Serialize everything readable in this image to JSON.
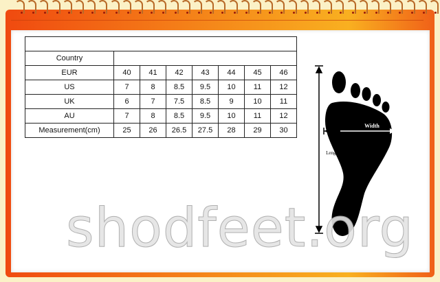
{
  "table": {
    "header_label": "Country",
    "rows": [
      {
        "label": "EUR",
        "values": [
          "40",
          "41",
          "42",
          "43",
          "44",
          "45",
          "46"
        ]
      },
      {
        "label": "US",
        "values": [
          "7",
          "8",
          "8.5",
          "9.5",
          "10",
          "11",
          "12"
        ]
      },
      {
        "label": "UK",
        "values": [
          "6",
          "7",
          "7.5",
          "8.5",
          "9",
          "10",
          "11"
        ]
      },
      {
        "label": "AU",
        "values": [
          "7",
          "8",
          "8.5",
          "9.5",
          "10",
          "11",
          "12"
        ]
      },
      {
        "label": "Measurement(cm)",
        "values": [
          "25",
          "26",
          "26.5",
          "27.5",
          "28",
          "29",
          "30"
        ]
      }
    ]
  },
  "diagram": {
    "width_label": "Width",
    "length_label": "Length"
  },
  "watermark": "shodfeet.org",
  "colors": {
    "frame": "#f26a14",
    "background": "#fbf1c6",
    "paper": "#ffffff"
  }
}
